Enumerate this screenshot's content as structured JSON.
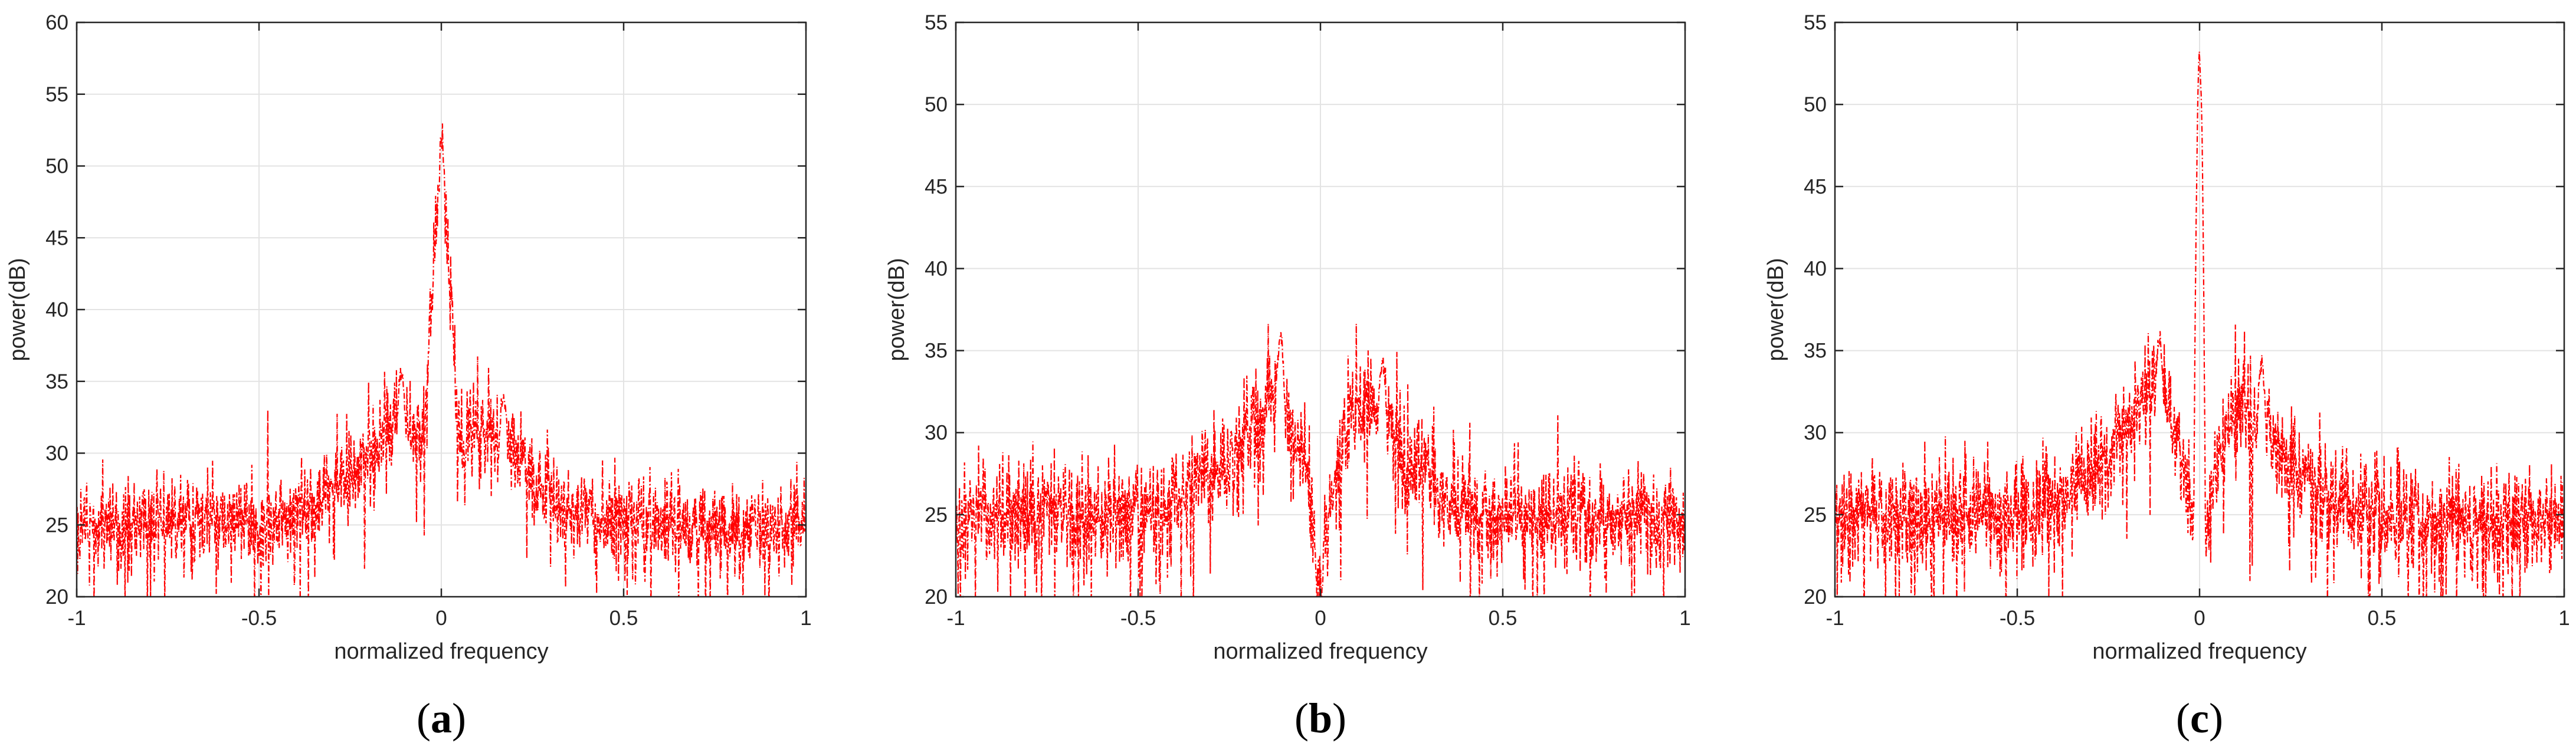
{
  "chart_data": [
    {
      "type": "line",
      "panel_label": "a",
      "xlabel": "normalized frequency",
      "ylabel": "power(dB)",
      "xlim": [
        -1,
        1
      ],
      "ylim": [
        20,
        60
      ],
      "xticks": [
        "-1",
        "-0.5",
        "0",
        "0.5",
        "1"
      ],
      "yticks": [
        "20",
        "25",
        "30",
        "35",
        "40",
        "45",
        "50",
        "55",
        "60"
      ],
      "grid": true,
      "line_color": "#ff0000",
      "line_style": "dash-dot",
      "noise_floor_db": 24.8,
      "envelope": [
        {
          "x": -1.0,
          "y": 25.0
        },
        {
          "x": -0.5,
          "y": 25.2
        },
        {
          "x": -0.4,
          "y": 26.0
        },
        {
          "x": -0.3,
          "y": 27.5
        },
        {
          "x": -0.2,
          "y": 29.5
        },
        {
          "x": -0.12,
          "y": 33.0
        },
        {
          "x": -0.05,
          "y": 31.0
        },
        {
          "x": 0.0,
          "y": 52.0
        },
        {
          "x": 0.05,
          "y": 31.0
        },
        {
          "x": 0.1,
          "y": 31.5
        },
        {
          "x": 0.18,
          "y": 30.5
        },
        {
          "x": 0.25,
          "y": 28.0
        },
        {
          "x": 0.35,
          "y": 26.0
        },
        {
          "x": 0.5,
          "y": 25.0
        },
        {
          "x": 1.0,
          "y": 24.8
        }
      ],
      "peaks": [
        {
          "x": -0.11,
          "y": 36.2
        },
        {
          "x": 0.0,
          "y": 52.2
        },
        {
          "x": 0.17,
          "y": 34.8
        }
      ]
    },
    {
      "type": "line",
      "panel_label": "b",
      "xlabel": "normalized frequency",
      "ylabel": "power(dB)",
      "xlim": [
        -1,
        1
      ],
      "ylim": [
        20,
        55
      ],
      "xticks": [
        "-1",
        "-0.5",
        "0",
        "0.5",
        "1"
      ],
      "yticks": [
        "20",
        "25",
        "30",
        "35",
        "40",
        "45",
        "50",
        "55"
      ],
      "grid": true,
      "line_color": "#ff0000",
      "line_style": "dash-dot",
      "noise_floor_db": 24.8,
      "envelope": [
        {
          "x": -1.0,
          "y": 25.0
        },
        {
          "x": -0.5,
          "y": 25.2
        },
        {
          "x": -0.4,
          "y": 26.0
        },
        {
          "x": -0.3,
          "y": 27.5
        },
        {
          "x": -0.2,
          "y": 29.5
        },
        {
          "x": -0.12,
          "y": 33.0
        },
        {
          "x": -0.04,
          "y": 28.0
        },
        {
          "x": 0.0,
          "y": 20.5
        },
        {
          "x": 0.04,
          "y": 28.0
        },
        {
          "x": 0.1,
          "y": 31.5
        },
        {
          "x": 0.18,
          "y": 30.5
        },
        {
          "x": 0.25,
          "y": 28.0
        },
        {
          "x": 0.35,
          "y": 26.0
        },
        {
          "x": 0.5,
          "y": 25.0
        },
        {
          "x": 1.0,
          "y": 24.8
        }
      ],
      "peaks": [
        {
          "x": -0.11,
          "y": 36.4
        },
        {
          "x": 0.17,
          "y": 34.9
        }
      ]
    },
    {
      "type": "line",
      "panel_label": "c",
      "xlabel": "normalized frequency",
      "ylabel": "power(dB)",
      "xlim": [
        -1,
        1
      ],
      "ylim": [
        20,
        55
      ],
      "xticks": [
        "-1",
        "-0.5",
        "0",
        "0.5",
        "1"
      ],
      "yticks": [
        "20",
        "25",
        "30",
        "35",
        "40",
        "45",
        "50",
        "55"
      ],
      "grid": true,
      "line_color": "#ff0000",
      "line_style": "dash-dot",
      "noise_floor_db": 24.8,
      "envelope": [
        {
          "x": -1.0,
          "y": 25.0
        },
        {
          "x": -0.5,
          "y": 25.2
        },
        {
          "x": -0.4,
          "y": 26.0
        },
        {
          "x": -0.3,
          "y": 27.5
        },
        {
          "x": -0.2,
          "y": 29.5
        },
        {
          "x": -0.12,
          "y": 33.0
        },
        {
          "x": -0.04,
          "y": 28.0
        },
        {
          "x": -0.01,
          "y": 22.0
        },
        {
          "x": 0.0,
          "y": 53.2
        },
        {
          "x": 0.01,
          "y": 22.0
        },
        {
          "x": 0.04,
          "y": 28.0
        },
        {
          "x": 0.1,
          "y": 31.5
        },
        {
          "x": 0.18,
          "y": 30.5
        },
        {
          "x": 0.25,
          "y": 28.0
        },
        {
          "x": 0.35,
          "y": 26.0
        },
        {
          "x": 0.5,
          "y": 25.0
        },
        {
          "x": 1.0,
          "y": 24.8
        }
      ],
      "peaks": [
        {
          "x": -0.11,
          "y": 36.4
        },
        {
          "x": 0.0,
          "y": 53.4
        },
        {
          "x": 0.17,
          "y": 34.9
        }
      ]
    }
  ]
}
